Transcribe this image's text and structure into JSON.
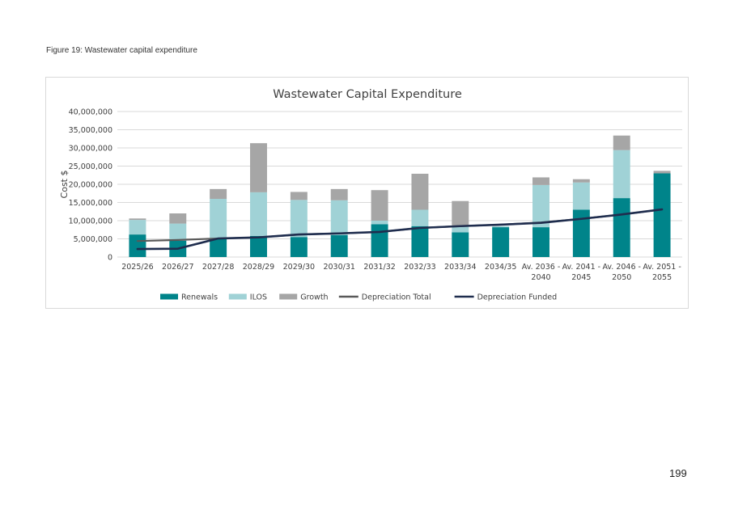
{
  "figure_caption": "Figure 19: Wastewater capital expenditure",
  "page_number": "199",
  "colors": {
    "renewals": "#00848a",
    "ilos": "#a0d2d6",
    "growth": "#a6a6a6",
    "depreciation_total": "#595959",
    "depreciation_funded": "#1f2d4e",
    "grid": "#d9d9d9"
  },
  "chart_data": {
    "type": "bar",
    "stacked": true,
    "title": "Wastewater Capital Expenditure",
    "xlabel": "",
    "ylabel": "Cost $",
    "ylim": [
      0,
      40000000
    ],
    "yticks": [
      "0",
      "5,000,000",
      "10,000,000",
      "15,000,000",
      "20,000,000",
      "25,000,000",
      "30,000,000",
      "35,000,000",
      "40,000,000"
    ],
    "grid": true,
    "legend_position": "bottom",
    "categories": [
      [
        "2025/26"
      ],
      [
        "2026/27"
      ],
      [
        "2027/28"
      ],
      [
        "2028/29"
      ],
      [
        "2029/30"
      ],
      [
        "2030/31"
      ],
      [
        "2031/32"
      ],
      [
        "2032/33"
      ],
      [
        "2033/34"
      ],
      [
        "2034/35"
      ],
      [
        "Av. 2036 -",
        "2040"
      ],
      [
        "Av. 2041 -",
        "2045"
      ],
      [
        "Av. 2046 -",
        "2050"
      ],
      [
        "Av. 2051 -",
        "2055"
      ]
    ],
    "series": [
      {
        "name": "Renewals",
        "kind": "bar",
        "values": [
          6200000,
          4500000,
          5000000,
          5800000,
          5500000,
          6000000,
          9000000,
          8500000,
          6800000,
          8200000,
          8200000,
          13000000,
          16200000,
          23000000
        ]
      },
      {
        "name": "ILOS",
        "kind": "bar",
        "values": [
          4000000,
          4700000,
          11000000,
          12000000,
          10200000,
          9600000,
          1000000,
          4500000,
          1800000,
          300000,
          11600000,
          7500000,
          13200000,
          0
        ]
      },
      {
        "name": "Growth",
        "kind": "bar",
        "values": [
          400000,
          2800000,
          2700000,
          13500000,
          2200000,
          3100000,
          8400000,
          9900000,
          6800000,
          0,
          2100000,
          900000,
          4000000,
          700000
        ]
      },
      {
        "name": "Depreciation Total",
        "kind": "line",
        "values": [
          4400000,
          4700000,
          5100000,
          5400000,
          6200000,
          6500000,
          6900000,
          8000000,
          8500000,
          8900000,
          9500000,
          10500000,
          11700000,
          13100000
        ]
      },
      {
        "name": "Depreciation Funded",
        "kind": "line",
        "values": [
          2200000,
          2300000,
          5100000,
          5400000,
          6200000,
          6500000,
          6900000,
          8000000,
          8500000,
          8900000,
          9400000,
          10500000,
          11700000,
          13100000
        ]
      }
    ]
  }
}
